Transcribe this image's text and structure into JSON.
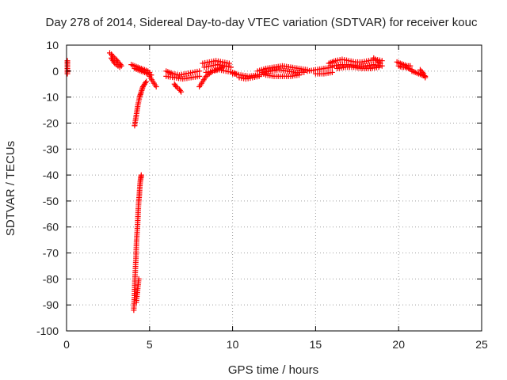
{
  "chart_data": {
    "type": "scatter",
    "title": "Day 278 of 2014, Sidereal Day-to-day VTEC variation (SDTVAR) for receiver kouc",
    "xlabel": "GPS time / hours",
    "ylabel": "SDTVAR / TECUs",
    "xlim": [
      0,
      25
    ],
    "ylim": [
      -100,
      10
    ],
    "x_ticks": [
      0,
      5,
      10,
      15,
      20,
      25
    ],
    "y_ticks": [
      10,
      0,
      -10,
      -20,
      -30,
      -40,
      -50,
      -60,
      -70,
      -80,
      -90,
      -100
    ],
    "grid": true,
    "legend": "none",
    "marker": "plus",
    "color": "#ff0000",
    "series": [
      {
        "segments": [
          {
            "x": [
              0.05,
              0.05,
              0.05,
              0.05
            ],
            "y": [
              4,
              3,
              1,
              -1
            ]
          },
          {
            "x": [
              2.6,
              2.7,
              2.8,
              2.9,
              3.0,
              3.1,
              3.2,
              3.3
            ],
            "y": [
              7,
              6.5,
              5.5,
              5,
              4.5,
              3.5,
              3,
              2
            ]
          },
          {
            "x": [
              2.7,
              2.8,
              2.9,
              3.0,
              3.1,
              3.2
            ],
            "y": [
              5,
              4,
              3,
              2.5,
              2,
              1.5
            ]
          },
          {
            "x": [
              3.9,
              4.1,
              4.3,
              4.5,
              4.7,
              4.9,
              5.0
            ],
            "y": [
              2.5,
              2,
              1.5,
              1,
              0.5,
              0,
              -0.5
            ]
          },
          {
            "x": [
              4.1,
              4.3,
              4.5,
              4.7,
              4.9,
              5.1
            ],
            "y": [
              1,
              0.5,
              0,
              -0.5,
              -1,
              -1.5
            ]
          },
          {
            "x": [
              4.1,
              4.15,
              4.2,
              4.25,
              4.3,
              4.35,
              4.4,
              4.45,
              4.5,
              4.55,
              4.6,
              4.7,
              4.8
            ],
            "y": [
              -21,
              -19,
              -17,
              -15,
              -13,
              -11.5,
              -10,
              -9,
              -8,
              -7,
              -6,
              -5,
              -4
            ]
          },
          {
            "x": [
              5.0,
              5.2,
              5.4
            ],
            "y": [
              -2,
              -4,
              -6
            ]
          },
          {
            "x": [
              4.05,
              4.08,
              4.1,
              4.12,
              4.15,
              4.18,
              4.2,
              4.22,
              4.25,
              4.28,
              4.3,
              4.32,
              4.35,
              4.38,
              4.4,
              4.42,
              4.45,
              4.48,
              4.5
            ],
            "y": [
              -92,
              -88,
              -84,
              -80,
              -76,
              -72,
              -68,
              -65,
              -62,
              -59,
              -56,
              -53,
              -50,
              -48,
              -46,
              -44,
              -42,
              -41,
              -40
            ]
          },
          {
            "x": [
              4.2,
              4.25,
              4.3,
              4.35
            ],
            "y": [
              -89,
              -86,
              -83,
              -80
            ]
          },
          {
            "x": [
              6.0,
              6.4,
              6.8,
              7.2,
              7.6,
              8.0
            ],
            "y": [
              0,
              -1,
              -1.5,
              -1,
              -0.5,
              0
            ]
          },
          {
            "x": [
              6.0,
              6.5,
              7.0,
              7.5,
              8.0
            ],
            "y": [
              -2,
              -2.5,
              -3,
              -2.5,
              -2
            ]
          },
          {
            "x": [
              6.5,
              6.6,
              6.7,
              6.8,
              6.9
            ],
            "y": [
              -5,
              -6,
              -6.5,
              -7,
              -8
            ]
          },
          {
            "x": [
              8.0,
              8.2,
              8.4,
              8.6,
              8.8,
              9.0,
              9.2,
              9.4
            ],
            "y": [
              -6,
              -4,
              -2,
              -1,
              0,
              0.5,
              1,
              1.5
            ]
          },
          {
            "x": [
              8.2,
              8.6,
              9.0,
              9.4,
              9.8
            ],
            "y": [
              3,
              3.5,
              4,
              3.5,
              3
            ]
          },
          {
            "x": [
              8.3,
              8.7,
              9.1,
              9.5,
              9.9
            ],
            "y": [
              1.5,
              2,
              2.5,
              2,
              1.5
            ]
          },
          {
            "x": [
              8.4,
              8.8,
              9.2,
              9.6,
              10.0,
              10.2
            ],
            "y": [
              -0.5,
              0,
              0.5,
              0,
              -0.5,
              -1
            ]
          },
          {
            "x": [
              10.0,
              10.5,
              11.0,
              11.5,
              12.0
            ],
            "y": [
              -1,
              -1.5,
              -2,
              -1.5,
              -1
            ]
          },
          {
            "x": [
              10.4,
              10.8,
              11.2,
              11.6
            ],
            "y": [
              -2.5,
              -3,
              -2.5,
              -2
            ]
          },
          {
            "x": [
              11.5,
              12.0,
              12.5,
              13.0,
              13.5,
              14.0,
              14.5
            ],
            "y": [
              0,
              1,
              1.5,
              2,
              1.5,
              1,
              0.5
            ]
          },
          {
            "x": [
              11.8,
              12.3,
              12.8,
              13.3,
              13.8,
              14.3
            ],
            "y": [
              -0.5,
              0,
              0.5,
              0,
              -0.5,
              -0.5
            ]
          },
          {
            "x": [
              12.0,
              12.5,
              13.0,
              13.5,
              14.0
            ],
            "y": [
              -1.5,
              -2,
              -2,
              -2,
              -1.5
            ]
          },
          {
            "x": [
              14.5,
              15.0,
              15.5,
              16.0
            ],
            "y": [
              0,
              0.5,
              1,
              1.5
            ]
          },
          {
            "x": [
              15.0,
              15.5,
              16.0
            ],
            "y": [
              -1,
              -1,
              -0.5
            ]
          },
          {
            "x": [
              15.8,
              16.2,
              16.6,
              17.0,
              17.4,
              17.8,
              18.2,
              18.6,
              19.0
            ],
            "y": [
              3,
              4,
              4.5,
              4,
              3.5,
              3.5,
              4,
              4.5,
              4
            ]
          },
          {
            "x": [
              16.0,
              16.5,
              17.0,
              17.5,
              18.0,
              18.5,
              19.0
            ],
            "y": [
              2,
              2.5,
              2.5,
              2,
              2,
              2.5,
              2
            ]
          },
          {
            "x": [
              16.3,
              16.8,
              17.3,
              17.8,
              18.3,
              18.8
            ],
            "y": [
              1,
              1.5,
              1.5,
              1,
              1,
              1.5
            ]
          },
          {
            "x": [
              18.5,
              18.7,
              18.9
            ],
            "y": [
              5,
              4,
              3
            ]
          },
          {
            "x": [
              19.9,
              20.1,
              20.3,
              20.5,
              20.7
            ],
            "y": [
              3.5,
              3,
              2.5,
              2,
              2
            ]
          },
          {
            "x": [
              20.0,
              20.2,
              20.4,
              20.6,
              20.8
            ],
            "y": [
              2,
              1.5,
              1.5,
              1,
              0.5
            ]
          },
          {
            "x": [
              20.8,
              21.0,
              21.2,
              21.4,
              21.6
            ],
            "y": [
              0,
              -0.5,
              -1,
              -1.5,
              -2
            ]
          },
          {
            "x": [
              21.3,
              21.5,
              21.6
            ],
            "y": [
              0.5,
              -1,
              -2.5
            ]
          }
        ]
      }
    ]
  }
}
